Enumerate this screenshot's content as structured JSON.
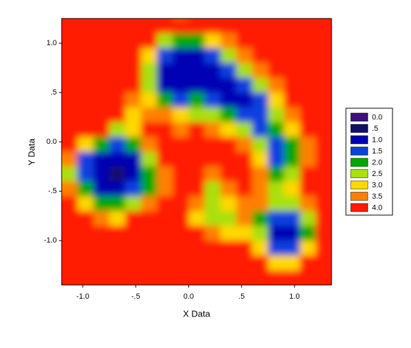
{
  "chart_data": {
    "type": "heatmap",
    "x_label": "X Data",
    "y_label": "Y Data",
    "xlim": [
      -1.2,
      1.35
    ],
    "ylim": [
      -1.45,
      1.25
    ],
    "xticks": [
      {
        "value": -1,
        "label": "-1.0"
      },
      {
        "value": -0.5,
        "label": "-.5"
      },
      {
        "value": 0,
        "label": "0.0"
      },
      {
        "value": 0.5,
        "label": ".5"
      },
      {
        "value": 1,
        "label": "1.0"
      }
    ],
    "yticks": [
      {
        "value": 1,
        "label": "1.0"
      },
      {
        "value": 0.5,
        "label": ".5"
      },
      {
        "value": 0,
        "label": "0.0"
      },
      {
        "value": -0.5,
        "label": "-.5"
      },
      {
        "value": -1,
        "label": "-1.0"
      }
    ],
    "x": [
      -1.125,
      -0.975,
      -0.825,
      -0.675,
      -0.525,
      -0.375,
      -0.225,
      -0.075,
      0.075,
      0.225,
      0.375,
      0.525,
      0.675,
      0.825,
      0.975,
      1.125,
      1.275
    ],
    "y": [
      1.175,
      1.025,
      0.875,
      0.725,
      0.575,
      0.425,
      0.275,
      0.125,
      -0.025,
      -0.175,
      -0.325,
      -0.475,
      -0.625,
      -0.775,
      -0.925,
      -1.075,
      -1.225,
      -1.375
    ],
    "z": [
      [
        4,
        4,
        4,
        4,
        4,
        4,
        4,
        3.5,
        4,
        4,
        4,
        4,
        4,
        4,
        4,
        4,
        4
      ],
      [
        4,
        4,
        4,
        4,
        4,
        4,
        2.5,
        2,
        2,
        3,
        3.5,
        4,
        4,
        4,
        4,
        4,
        4
      ],
      [
        4,
        4,
        4,
        4,
        4,
        3,
        1.5,
        1.2,
        1.3,
        1.8,
        2.5,
        3.5,
        4,
        4,
        4,
        4,
        4
      ],
      [
        4,
        4,
        4,
        4,
        4,
        2.5,
        1.2,
        1.0,
        1.2,
        1.3,
        1.5,
        2.5,
        3.5,
        4,
        4,
        4,
        4
      ],
      [
        4,
        4,
        4,
        4,
        4,
        2.8,
        1.3,
        1.2,
        1.3,
        1.2,
        1.3,
        1.5,
        2.5,
        3.5,
        4,
        4,
        4
      ],
      [
        4,
        4,
        4,
        4,
        3.5,
        3,
        2,
        1.8,
        2,
        1.5,
        1.3,
        1.3,
        1.8,
        3,
        4,
        4,
        4
      ],
      [
        4,
        4,
        4,
        4,
        3,
        3.5,
        3.5,
        3,
        2.5,
        2.5,
        2,
        1.5,
        1.5,
        2.5,
        3.5,
        4,
        4
      ],
      [
        4,
        4,
        4,
        2.8,
        3,
        4,
        4,
        3.5,
        4,
        3.5,
        3,
        2.5,
        1.8,
        2,
        3,
        4,
        4
      ],
      [
        4,
        3,
        2,
        1.6,
        2,
        3.5,
        4,
        4,
        4,
        4,
        4,
        3.5,
        2.5,
        1.5,
        2,
        3.5,
        4
      ],
      [
        3.5,
        1.8,
        1.3,
        1.2,
        1.4,
        2.5,
        4,
        4,
        4,
        4,
        4,
        4,
        3,
        1.8,
        2,
        3.5,
        4
      ],
      [
        2.5,
        1.5,
        1.0,
        0.8,
        1.2,
        2,
        3.5,
        4,
        4,
        3.5,
        4,
        4,
        3.5,
        2,
        2.5,
        4,
        4
      ],
      [
        3.5,
        2,
        1.3,
        1.2,
        1.5,
        2.2,
        3.5,
        4,
        4,
        2.8,
        3.5,
        4,
        3.5,
        2.5,
        3,
        4,
        4
      ],
      [
        4,
        3,
        2.2,
        2,
        2.5,
        3.5,
        4,
        4,
        3.5,
        2.5,
        3,
        3.5,
        3.5,
        2.5,
        2.5,
        3.5,
        4
      ],
      [
        4,
        4,
        3.5,
        3,
        4,
        4,
        4,
        4,
        3,
        2.5,
        2.8,
        3.5,
        2,
        1.6,
        1.5,
        2.5,
        4
      ],
      [
        4,
        4,
        4,
        4,
        4,
        4,
        4,
        4,
        4,
        3.5,
        3,
        3,
        2.5,
        1.3,
        1.3,
        2,
        4
      ],
      [
        4,
        4,
        4,
        4,
        4,
        4,
        4,
        4,
        4,
        4,
        4,
        4,
        3,
        1.8,
        1.8,
        3,
        4
      ],
      [
        4,
        4,
        4,
        4,
        4,
        4,
        4,
        4,
        4,
        4,
        4,
        4,
        4,
        3,
        3,
        4,
        4
      ],
      [
        4,
        4,
        4,
        4,
        4,
        4,
        4,
        4,
        4,
        4,
        4,
        4,
        4,
        4,
        4,
        4,
        4
      ]
    ],
    "levels": [
      {
        "value": 0,
        "label": "0.0",
        "color": "#3c1080"
      },
      {
        "value": 0.5,
        "label": ".5",
        "color": "#12106c"
      },
      {
        "value": 1,
        "label": "1.0",
        "color": "#0000b4"
      },
      {
        "value": 1.5,
        "label": "1.5",
        "color": "#0c40e0"
      },
      {
        "value": 2,
        "label": "2.0",
        "color": "#00a800"
      },
      {
        "value": 2.5,
        "label": "2.5",
        "color": "#a8e010"
      },
      {
        "value": 3,
        "label": "3.0",
        "color": "#ffd800"
      },
      {
        "value": 3.5,
        "label": "3.5",
        "color": "#ff8000"
      },
      {
        "value": 4,
        "label": "4.0",
        "color": "#ff1a00"
      }
    ]
  }
}
